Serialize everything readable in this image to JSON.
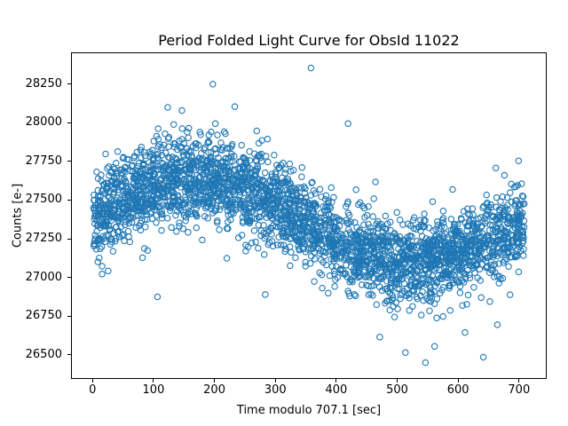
{
  "chart_data": {
    "type": "scatter",
    "title": "Period Folded Light Curve for ObsId 11022",
    "xlabel": "Time modulo 707.1 [sec]",
    "ylabel": "Counts [e-]",
    "grid": false,
    "legend": null,
    "background_color": "#ffffff",
    "axis_color": "#000000",
    "marker": {
      "style": "open-circle",
      "color": "#1f77b4",
      "radius_px": 3.2,
      "stroke_px": 1.1
    },
    "xlim": [
      -35.4,
      742.5
    ],
    "ylim": [
      26355,
      28455
    ],
    "xticks": [
      0,
      100,
      200,
      300,
      400,
      500,
      600,
      700
    ],
    "yticks": [
      26500,
      26750,
      27000,
      27250,
      27500,
      27750,
      28000,
      28250
    ],
    "fold_period_sec": 707.1,
    "obsid": "11022",
    "n_points": 3000,
    "observed_extremes": {
      "y_min": 26455,
      "y_max": 28360
    },
    "generator": {
      "comment": "Dense folded light curve: sinusoidal modulation of count rate plus gaussian scatter, reproduced deterministically from this spec.",
      "seed": 11022,
      "x_min": 0,
      "x_max": 707.1,
      "trend": {
        "shape": "cosine",
        "mean": 27370,
        "amplitude": 270,
        "period": 707.1,
        "peak_x": 170
      },
      "noise_std": 138
    },
    "outliers": [
      [
        357,
        28360
      ],
      [
        196,
        28255
      ],
      [
        232,
        28110
      ],
      [
        122,
        28105
      ],
      [
        418,
        28000
      ],
      [
        105,
        26880
      ],
      [
        282,
        26895
      ],
      [
        545,
        26455
      ],
      [
        640,
        26490
      ],
      [
        512,
        26520
      ],
      [
        470,
        26620
      ],
      [
        560,
        26560
      ],
      [
        610,
        26650
      ],
      [
        663,
        26700
      ]
    ]
  }
}
